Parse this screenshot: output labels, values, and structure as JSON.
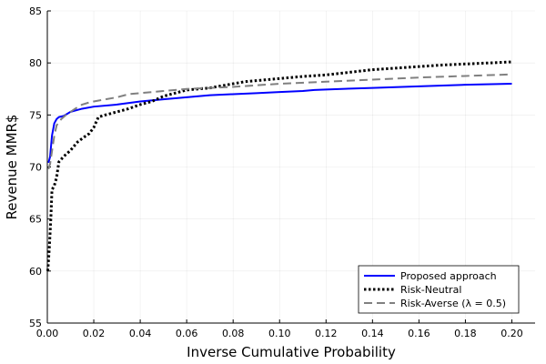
{
  "chart_data": {
    "type": "line",
    "title": "",
    "xlabel": "Inverse Cumulative Probability",
    "ylabel": "Revenue MMR$",
    "xlim": [
      0.0,
      0.21
    ],
    "ylim": [
      55,
      85
    ],
    "x_ticks": [
      0.0,
      0.02,
      0.04,
      0.06,
      0.08,
      0.1,
      0.12,
      0.14,
      0.16,
      0.18,
      0.2
    ],
    "x_tick_labels": [
      "0.00",
      "0.02",
      "0.04",
      "0.06",
      "0.08",
      "0.10",
      "0.12",
      "0.14",
      "0.16",
      "0.18",
      "0.20"
    ],
    "y_ticks": [
      55,
      60,
      65,
      70,
      75,
      80,
      85
    ],
    "y_tick_labels": [
      "55",
      "60",
      "65",
      "70",
      "75",
      "80",
      "85"
    ],
    "grid": true,
    "legend_position": "bottom-right",
    "series": [
      {
        "name": "Proposed approach",
        "color": "#0000ff",
        "dash": "solid",
        "x": [
          0.0005,
          0.0012,
          0.002,
          0.003,
          0.004,
          0.005,
          0.007,
          0.01,
          0.015,
          0.02,
          0.03,
          0.04,
          0.05,
          0.06,
          0.07,
          0.08,
          0.09,
          0.1,
          0.11,
          0.115,
          0.12,
          0.14,
          0.16,
          0.18,
          0.2
        ],
        "y": [
          70.4,
          71.0,
          73.0,
          74.2,
          74.6,
          74.8,
          74.9,
          75.3,
          75.6,
          75.8,
          76.0,
          76.3,
          76.5,
          76.7,
          76.9,
          77.0,
          77.1,
          77.2,
          77.3,
          77.4,
          77.45,
          77.6,
          77.75,
          77.9,
          78.0
        ]
      },
      {
        "name": "Risk-Neutral",
        "color": "#000000",
        "dash": "dotted",
        "x": [
          0.0002,
          0.0008,
          0.0015,
          0.002,
          0.003,
          0.004,
          0.005,
          0.007,
          0.01,
          0.013,
          0.016,
          0.018,
          0.02,
          0.022,
          0.025,
          0.03,
          0.035,
          0.04,
          0.045,
          0.05,
          0.055,
          0.06,
          0.07,
          0.08,
          0.085,
          0.09,
          0.1,
          0.11,
          0.12,
          0.13,
          0.14,
          0.15,
          0.16,
          0.17,
          0.18,
          0.19,
          0.2
        ],
        "y": [
          60.0,
          62.0,
          65.0,
          67.8,
          68.2,
          69.0,
          70.5,
          71.0,
          71.6,
          72.4,
          72.9,
          73.2,
          73.8,
          74.8,
          75.0,
          75.3,
          75.6,
          76.0,
          76.3,
          76.8,
          77.1,
          77.4,
          77.6,
          78.0,
          78.2,
          78.3,
          78.5,
          78.7,
          78.85,
          79.1,
          79.35,
          79.5,
          79.65,
          79.8,
          79.9,
          80.0,
          80.1
        ]
      },
      {
        "name": "Risk-Averse (λ = 0.5)",
        "color": "#808080",
        "dash": "dashed",
        "x": [
          0.0005,
          0.0012,
          0.002,
          0.003,
          0.004,
          0.006,
          0.008,
          0.01,
          0.012,
          0.015,
          0.018,
          0.02,
          0.025,
          0.03,
          0.035,
          0.04,
          0.05,
          0.06,
          0.07,
          0.08,
          0.09,
          0.1,
          0.12,
          0.14,
          0.16,
          0.18,
          0.2
        ],
        "y": [
          69.8,
          70.3,
          71.5,
          73.0,
          74.0,
          74.6,
          75.0,
          75.3,
          75.6,
          76.0,
          76.2,
          76.3,
          76.5,
          76.7,
          77.0,
          77.1,
          77.3,
          77.5,
          77.6,
          77.7,
          77.85,
          78.0,
          78.2,
          78.4,
          78.6,
          78.75,
          78.9
        ]
      }
    ]
  }
}
